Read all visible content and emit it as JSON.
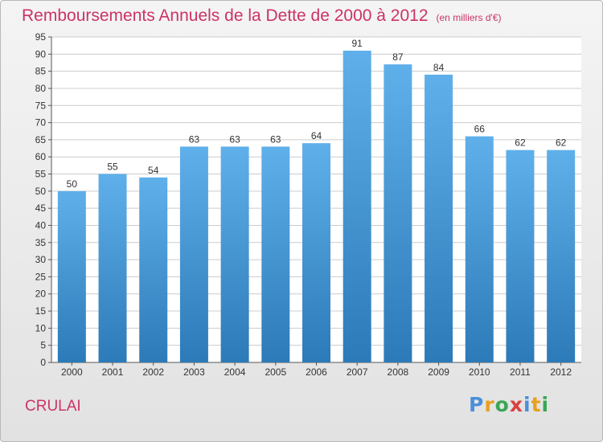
{
  "header": {
    "title": "Remboursements Annuels de la Dette de 2000 à 2012",
    "unit": "(en milliers d'€)"
  },
  "footer": {
    "commune": "CRULAI",
    "logo": "Proxiti",
    "logo_colors": [
      "#4a90d9",
      "#e8a020",
      "#3aa655",
      "#d94040",
      "#4a90d9",
      "#e8a020",
      "#3aa655"
    ]
  },
  "colors": {
    "bar_top": "#5fb0ea",
    "bar_bottom": "#2c7ab8",
    "accent": "#cc3366",
    "grid": "#cccccc"
  },
  "chart_data": {
    "type": "bar",
    "title": "Remboursements Annuels de la Dette de 2000 à 2012",
    "subtitle": "(en milliers d'€)",
    "categories": [
      "2000",
      "2001",
      "2002",
      "2003",
      "2004",
      "2005",
      "2006",
      "2007",
      "2008",
      "2009",
      "2010",
      "2011",
      "2012"
    ],
    "values": [
      50,
      55,
      54,
      63,
      63,
      63,
      64,
      91,
      87,
      84,
      66,
      62,
      62
    ],
    "ylim": [
      0,
      95
    ],
    "ytick_step": 5,
    "grid": true,
    "data_labels": true
  }
}
